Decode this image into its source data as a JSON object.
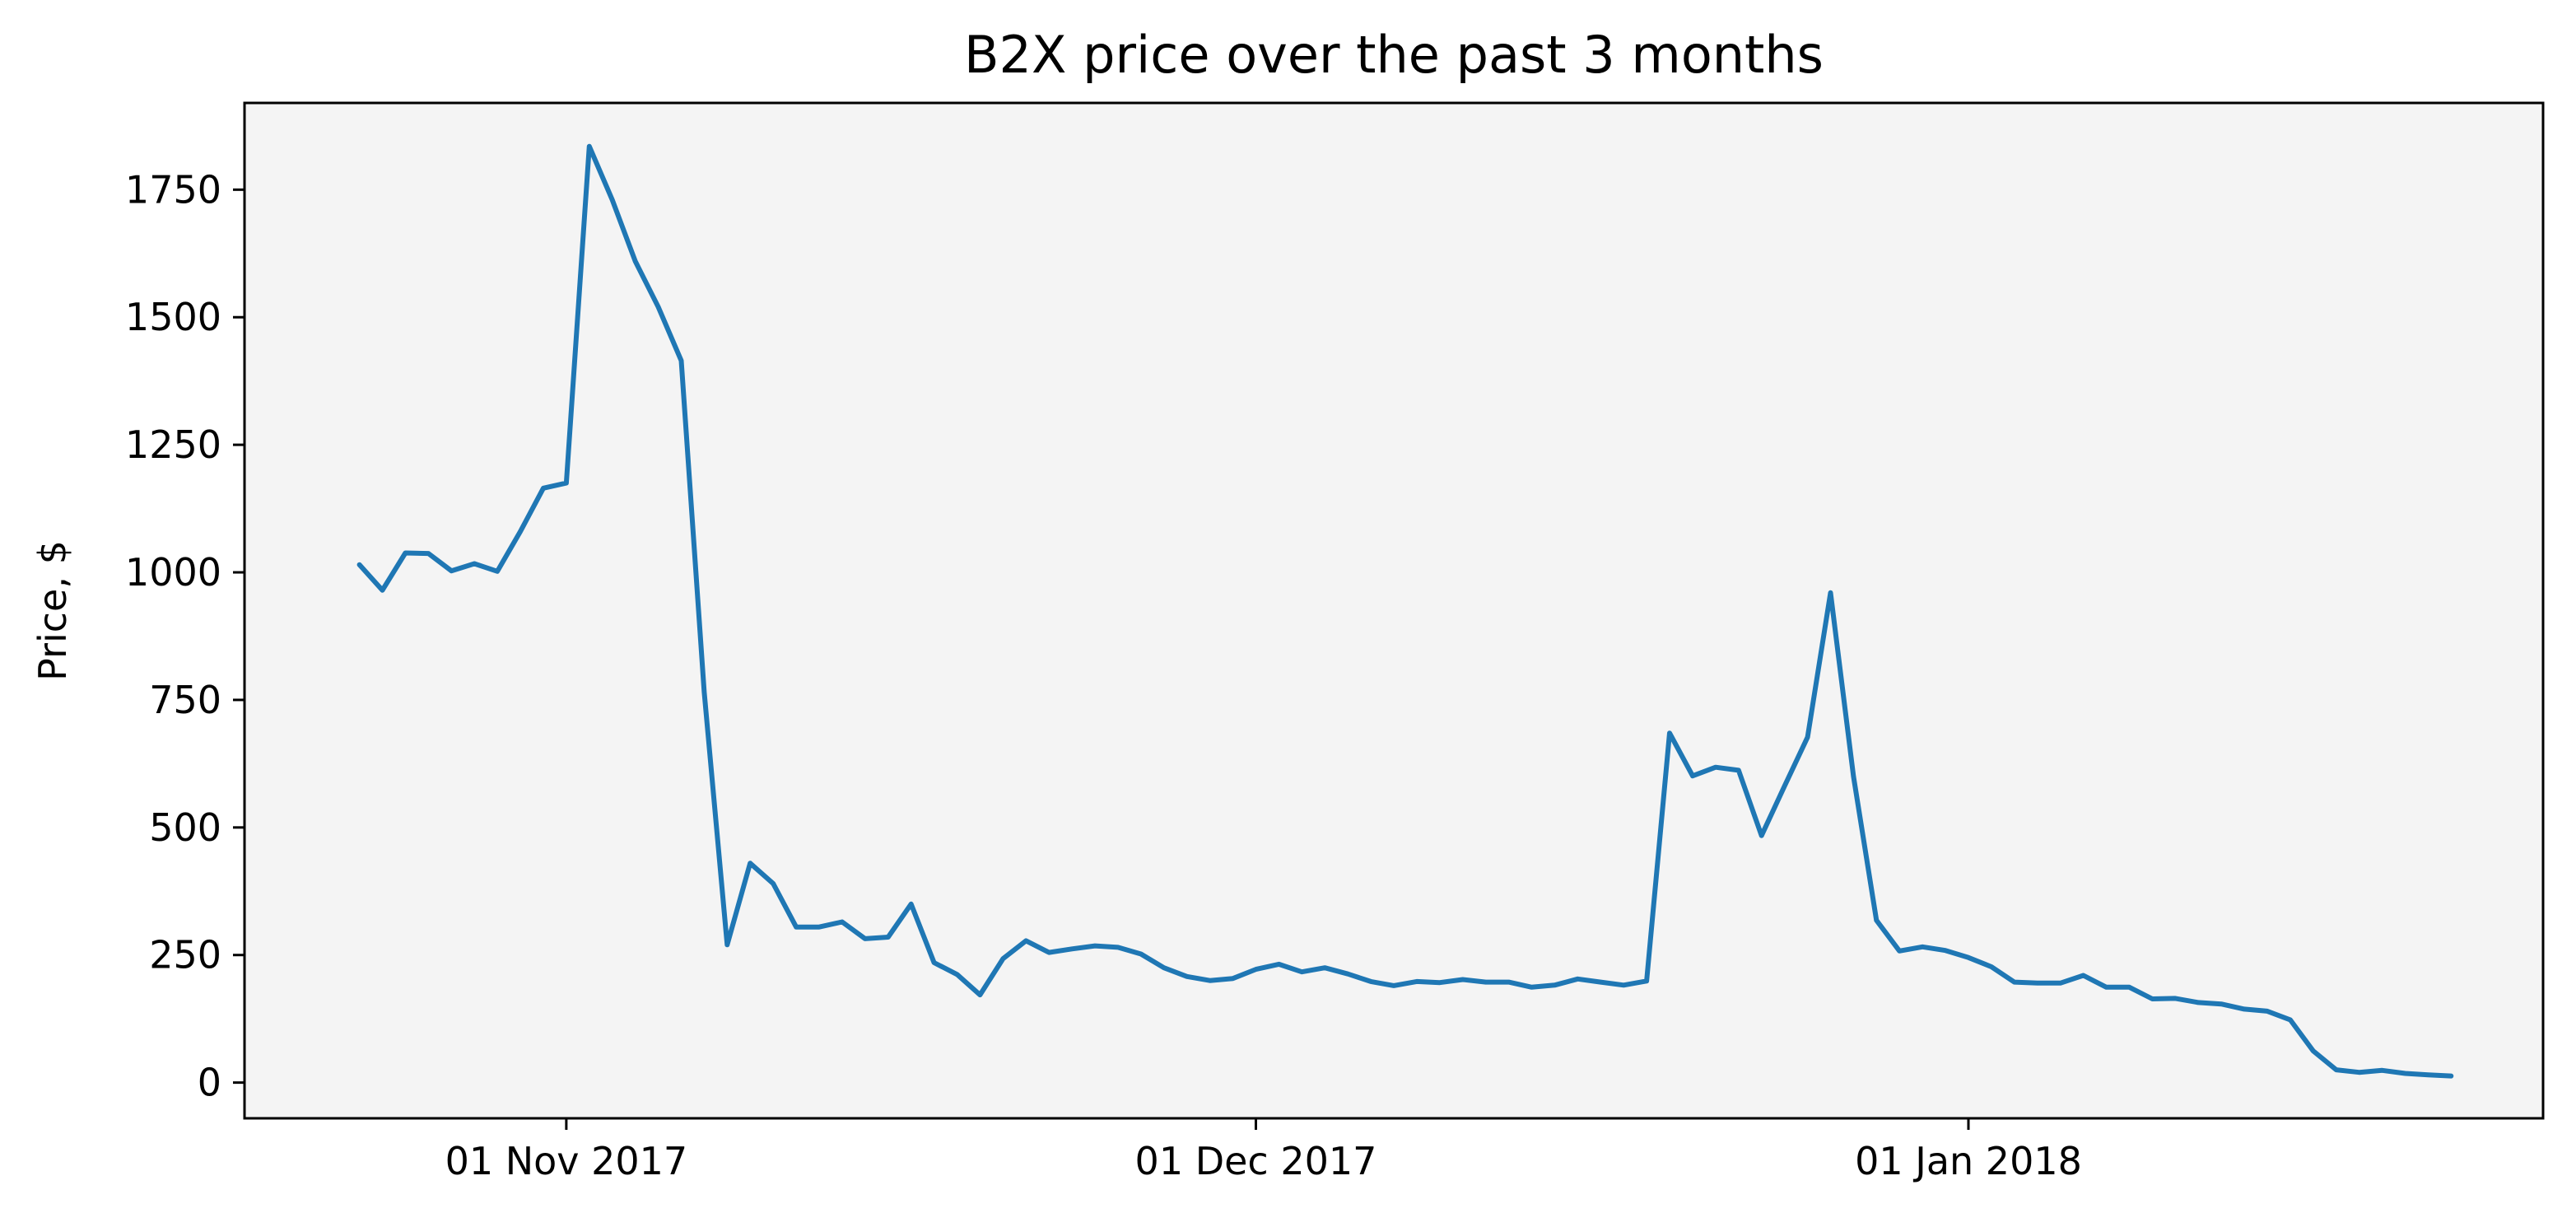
{
  "chart_data": {
    "type": "line",
    "title": "B2X price over the past 3 months",
    "xlabel": "",
    "ylabel": "Price, $",
    "grid": false,
    "legend": "none",
    "colors": {
      "line": "#1f77b4",
      "plot_background": "#f4f4f4",
      "axes": "#000000"
    },
    "xlim": [
      "2017-10-18",
      "2018-01-26"
    ],
    "ylim": [
      -70,
      1920
    ],
    "x_ticks": [
      {
        "date": "2017-11-01",
        "label": "01 Nov 2017"
      },
      {
        "date": "2017-12-01",
        "label": "01 Dec 2017"
      },
      {
        "date": "2018-01-01",
        "label": "01 Jan 2018"
      }
    ],
    "y_ticks": [
      0,
      250,
      500,
      750,
      1000,
      1250,
      1500,
      1750
    ],
    "series": [
      {
        "x": [
          "2017-10-23",
          "2017-10-24",
          "2017-10-25",
          "2017-10-26",
          "2017-10-27",
          "2017-10-28",
          "2017-10-29",
          "2017-10-30",
          "2017-10-31",
          "2017-11-01",
          "2017-11-02",
          "2017-11-03",
          "2017-11-04",
          "2017-11-05",
          "2017-11-06",
          "2017-11-07",
          "2017-11-08",
          "2017-11-09",
          "2017-11-10",
          "2017-11-11",
          "2017-11-12",
          "2017-11-13",
          "2017-11-14",
          "2017-11-15",
          "2017-11-16",
          "2017-11-17",
          "2017-11-18",
          "2017-11-19",
          "2017-11-20",
          "2017-11-21",
          "2017-11-22",
          "2017-11-23",
          "2017-11-24",
          "2017-11-25",
          "2017-11-26",
          "2017-11-27",
          "2017-11-28",
          "2017-11-29",
          "2017-11-30",
          "2017-12-01",
          "2017-12-02",
          "2017-12-03",
          "2017-12-04",
          "2017-12-05",
          "2017-12-06",
          "2017-12-07",
          "2017-12-08",
          "2017-12-09",
          "2017-12-10",
          "2017-12-11",
          "2017-12-12",
          "2017-12-13",
          "2017-12-14",
          "2017-12-15",
          "2017-12-16",
          "2017-12-17",
          "2017-12-18",
          "2017-12-19",
          "2017-12-20",
          "2017-12-21",
          "2017-12-22",
          "2017-12-23",
          "2017-12-24",
          "2017-12-25",
          "2017-12-26",
          "2017-12-27",
          "2017-12-28",
          "2017-12-29",
          "2017-12-30",
          "2017-12-31",
          "2018-01-01",
          "2018-01-02",
          "2018-01-03",
          "2018-01-04",
          "2018-01-05",
          "2018-01-06",
          "2018-01-07",
          "2018-01-08",
          "2018-01-09",
          "2018-01-10",
          "2018-01-11",
          "2018-01-12",
          "2018-01-13",
          "2018-01-14",
          "2018-01-15",
          "2018-01-16",
          "2018-01-17",
          "2018-01-18",
          "2018-01-19",
          "2018-01-20",
          "2018-01-21",
          "2018-01-22"
        ],
        "y": [
          1015,
          965,
          1038,
          1037,
          1003,
          1017,
          1002,
          1080,
          1165,
          1175,
          1835,
          1730,
          1610,
          1520,
          1415,
          765,
          270,
          430,
          390,
          305,
          305,
          315,
          282,
          285,
          350,
          235,
          212,
          172,
          243,
          278,
          255,
          262,
          268,
          265,
          252,
          225,
          208,
          200,
          204,
          222,
          232,
          217,
          225,
          213,
          198,
          190,
          198,
          196,
          202,
          197,
          197,
          187,
          191,
          203,
          197,
          191,
          199,
          685,
          601,
          618,
          612,
          484,
          581,
          677,
          960,
          600,
          318,
          258,
          266,
          259,
          245,
          227,
          197,
          195,
          195,
          210,
          187,
          187,
          164,
          165,
          157,
          154,
          144,
          140,
          123,
          62,
          25,
          20,
          24,
          18,
          15,
          13
        ]
      }
    ]
  }
}
